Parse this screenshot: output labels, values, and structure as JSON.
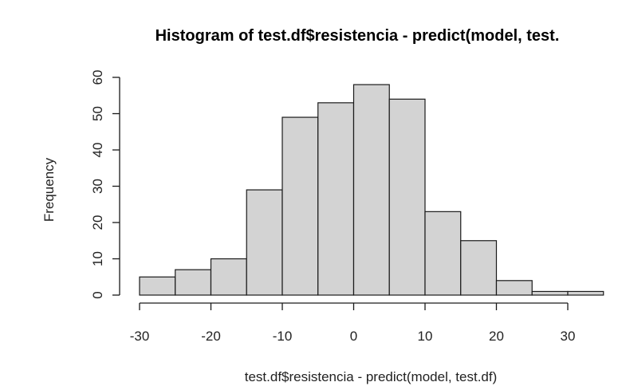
{
  "chart_data": {
    "type": "bar",
    "title": "Histogram of test.df$resistencia - predict(model, test.",
    "xlabel": "test.df$resistencia - predict(model, test.df)",
    "ylabel": "Frequency",
    "bin_edges": [
      -30,
      -25,
      -20,
      -15,
      -10,
      -5,
      0,
      5,
      10,
      15,
      20,
      25,
      30,
      35
    ],
    "values": [
      5,
      7,
      10,
      29,
      49,
      53,
      58,
      54,
      23,
      15,
      4,
      1,
      1
    ],
    "x_ticks": [
      -30,
      -20,
      -10,
      0,
      10,
      20,
      30
    ],
    "y_ticks": [
      0,
      10,
      20,
      30,
      40,
      50,
      60
    ],
    "xlim": [
      -30,
      35
    ],
    "ylim": [
      0,
      60
    ],
    "grid": false,
    "bar_color": "#d3d3d3",
    "edge_color": "#1a1a1a"
  }
}
